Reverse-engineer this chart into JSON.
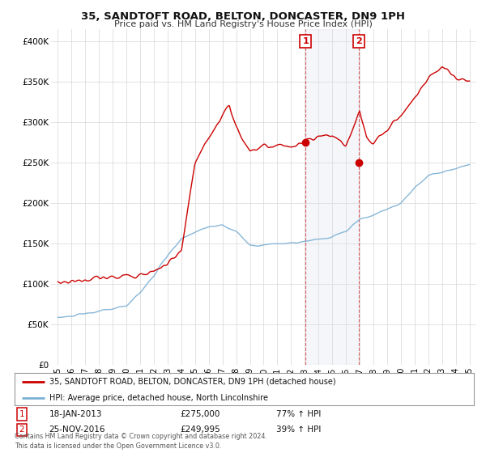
{
  "title": "35, SANDTOFT ROAD, BELTON, DONCASTER, DN9 1PH",
  "subtitle": "Price paid vs. HM Land Registry's House Price Index (HPI)",
  "ylabel_ticks": [
    "£0",
    "£50K",
    "£100K",
    "£150K",
    "£200K",
    "£250K",
    "£300K",
    "£350K",
    "£400K"
  ],
  "ytick_values": [
    0,
    50000,
    100000,
    150000,
    200000,
    250000,
    300000,
    350000,
    400000
  ],
  "ylim": [
    0,
    415000
  ],
  "xlim_start": 1994.5,
  "xlim_end": 2025.5,
  "house_color": "#cc0000",
  "hpi_color": "#7bafd4",
  "sale1_date": "18-JAN-2013",
  "sale1_price": 275000,
  "sale1_hpi": "77% ↑ HPI",
  "sale1_year": 2013.05,
  "sale2_date": "25-NOV-2016",
  "sale2_price": 249995,
  "sale2_hpi": "39% ↑ HPI",
  "sale2_year": 2016.92,
  "legend_house": "35, SANDTOFT ROAD, BELTON, DONCASTER, DN9 1PH (detached house)",
  "legend_hpi": "HPI: Average price, detached house, North Lincolnshire",
  "footer": "Contains HM Land Registry data © Crown copyright and database right 2024.\nThis data is licensed under the Open Government Licence v3.0.",
  "background_color": "#ffffff",
  "grid_color": "#dddddd",
  "xtick_years": [
    1995,
    1996,
    1997,
    1998,
    1999,
    2000,
    2001,
    2002,
    2003,
    2004,
    2005,
    2006,
    2007,
    2008,
    2009,
    2010,
    2011,
    2012,
    2013,
    2014,
    2015,
    2016,
    2017,
    2018,
    2019,
    2020,
    2021,
    2022,
    2023,
    2024,
    2025
  ],
  "hpi_anchors_x": [
    1995,
    1996,
    1997,
    1998,
    1999,
    2000,
    2001,
    2002,
    2003,
    2004,
    2005,
    2006,
    2007,
    2008,
    2009,
    2010,
    2011,
    2012,
    2013,
    2014,
    2015,
    2016,
    2017,
    2018,
    2019,
    2020,
    2021,
    2022,
    2023,
    2024,
    2025
  ],
  "hpi_anchors_y": [
    58000,
    60000,
    63000,
    66000,
    69000,
    73000,
    90000,
    110000,
    135000,
    155000,
    165000,
    170000,
    173000,
    165000,
    148000,
    148000,
    150000,
    150000,
    152000,
    155000,
    158000,
    165000,
    180000,
    185000,
    193000,
    200000,
    218000,
    235000,
    238000,
    243000,
    248000
  ],
  "house_anchors_x": [
    1995,
    1996,
    1997,
    1998,
    1999,
    2000,
    2001,
    2002,
    2003,
    2004,
    2005,
    2006,
    2007,
    2007.5,
    2008,
    2008.5,
    2009,
    2010,
    2011,
    2012,
    2013,
    2014,
    2015,
    2016,
    2017,
    2017.5,
    2018,
    2019,
    2020,
    2021,
    2022,
    2023,
    2024,
    2025
  ],
  "house_anchors_y": [
    102000,
    103000,
    105000,
    107000,
    108000,
    110000,
    112000,
    115000,
    125000,
    140000,
    250000,
    280000,
    310000,
    320000,
    295000,
    278000,
    265000,
    270000,
    272000,
    270000,
    275000,
    280000,
    285000,
    270000,
    315000,
    280000,
    275000,
    290000,
    310000,
    330000,
    355000,
    370000,
    355000,
    350000
  ],
  "noise_seed_hpi": 10,
  "noise_seed_house": 20,
  "hpi_noise_std": 2000,
  "house_noise_std": 3500,
  "num_points": 500
}
